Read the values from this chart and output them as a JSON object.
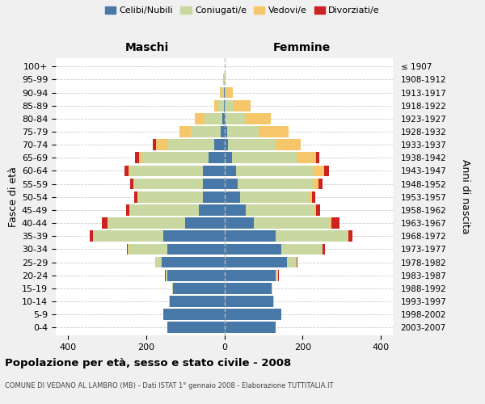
{
  "age_groups": [
    "0-4",
    "5-9",
    "10-14",
    "15-19",
    "20-24",
    "25-29",
    "30-34",
    "35-39",
    "40-44",
    "45-49",
    "50-54",
    "55-59",
    "60-64",
    "65-69",
    "70-74",
    "75-79",
    "80-84",
    "85-89",
    "90-94",
    "95-99",
    "100+"
  ],
  "birth_years": [
    "2003-2007",
    "1998-2002",
    "1993-1997",
    "1988-1992",
    "1983-1987",
    "1978-1982",
    "1973-1977",
    "1968-1972",
    "1963-1967",
    "1958-1962",
    "1953-1957",
    "1948-1952",
    "1943-1947",
    "1938-1942",
    "1933-1937",
    "1928-1932",
    "1923-1927",
    "1918-1922",
    "1913-1917",
    "1908-1912",
    "≤ 1907"
  ],
  "colors": {
    "celibi": "#4878a8",
    "coniugati": "#c8d8a0",
    "vedovi": "#f5c76a",
    "divorziati": "#cc2222"
  },
  "maschi": {
    "celibi": [
      145,
      155,
      140,
      130,
      145,
      160,
      145,
      155,
      100,
      65,
      55,
      55,
      55,
      40,
      25,
      10,
      5,
      1,
      1,
      0,
      0
    ],
    "coniugati": [
      0,
      0,
      2,
      2,
      5,
      15,
      100,
      180,
      195,
      175,
      165,
      175,
      185,
      170,
      120,
      75,
      45,
      15,
      5,
      1,
      0
    ],
    "vedovi": [
      0,
      0,
      0,
      0,
      0,
      1,
      1,
      1,
      2,
      2,
      2,
      3,
      5,
      8,
      30,
      30,
      25,
      10,
      5,
      2,
      0
    ],
    "divorziati": [
      0,
      0,
      0,
      0,
      2,
      1,
      2,
      8,
      15,
      8,
      8,
      8,
      10,
      10,
      8,
      0,
      0,
      0,
      0,
      0,
      0
    ]
  },
  "femmine": {
    "nubili": [
      130,
      145,
      125,
      120,
      130,
      160,
      145,
      130,
      75,
      55,
      40,
      35,
      30,
      20,
      10,
      8,
      3,
      2,
      1,
      0,
      0
    ],
    "coniugate": [
      0,
      0,
      2,
      2,
      8,
      25,
      105,
      185,
      195,
      175,
      175,
      190,
      195,
      165,
      120,
      80,
      50,
      20,
      5,
      1,
      0
    ],
    "vedove": [
      0,
      0,
      0,
      0,
      0,
      0,
      1,
      1,
      3,
      5,
      8,
      15,
      30,
      50,
      65,
      75,
      65,
      45,
      15,
      3,
      1
    ],
    "divorziate": [
      0,
      0,
      0,
      0,
      1,
      1,
      5,
      10,
      20,
      10,
      8,
      10,
      12,
      8,
      0,
      0,
      0,
      0,
      0,
      0,
      0
    ]
  },
  "xlim": 430,
  "title": "Popolazione per età, sesso e stato civile - 2008",
  "subtitle": "COMUNE DI VEDANO AL LAMBRO (MB) - Dati ISTAT 1° gennaio 2008 - Elaborazione TUTTITALIA.IT",
  "xlabel_left": "Maschi",
  "xlabel_right": "Femmine",
  "ylabel_left": "Fasce di età",
  "ylabel_right": "Anni di nascita",
  "bg_color": "#f0f0f0",
  "plot_bg": "#ffffff",
  "grid_color": "#cccccc"
}
